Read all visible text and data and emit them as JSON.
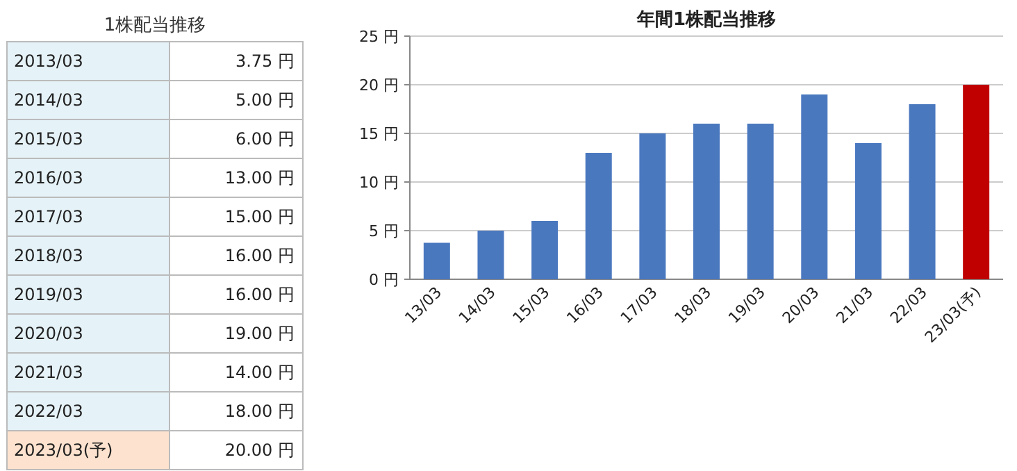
{
  "chart_data": [
    {
      "type": "other",
      "title": "1株配当推移",
      "categories": [
        "2013/03",
        "2014/03",
        "2015/03",
        "2016/03",
        "2017/03",
        "2018/03",
        "2019/03",
        "2020/03",
        "2021/03",
        "2022/03",
        "2023/03(予)"
      ],
      "value_labels": [
        "3.75 円",
        "5.00 円",
        "6.00 円",
        "13.00 円",
        "15.00 円",
        "16.00 円",
        "16.00 円",
        "19.00 円",
        "14.00 円",
        "18.00 円",
        "20.00 円"
      ],
      "colors": [
        "#e5f2f7",
        "#e5f2f7",
        "#e5f2f7",
        "#e5f2f7",
        "#e5f2f7",
        "#e5f2f7",
        "#e5f2f7",
        "#e5f2f7",
        "#e5f2f7",
        "#e5f2f7",
        "#fde3cf"
      ]
    },
    {
      "type": "bar",
      "title": "年間1株配当推移",
      "categories": [
        "13/03",
        "14/03",
        "15/03",
        "16/03",
        "17/03",
        "18/03",
        "19/03",
        "20/03",
        "21/03",
        "22/03",
        "23/03(予)"
      ],
      "values": [
        3.75,
        5,
        6,
        13,
        15,
        16,
        16,
        19,
        14,
        18,
        20
      ],
      "colors": [
        "#4a78bf",
        "#4a78bf",
        "#4a78bf",
        "#4a78bf",
        "#4a78bf",
        "#4a78bf",
        "#4a78bf",
        "#4a78bf",
        "#4a78bf",
        "#4a78bf",
        "#c00000"
      ],
      "ylim": [
        0,
        25
      ],
      "yticks": [
        {
          "value": 0,
          "label": "0 円"
        },
        {
          "value": 5,
          "label": "5 円"
        },
        {
          "value": 10,
          "label": "10 円"
        },
        {
          "value": 15,
          "label": "15 円"
        },
        {
          "value": 20,
          "label": "20 円"
        },
        {
          "value": 25,
          "label": "25 円"
        }
      ],
      "grid": "y"
    }
  ]
}
